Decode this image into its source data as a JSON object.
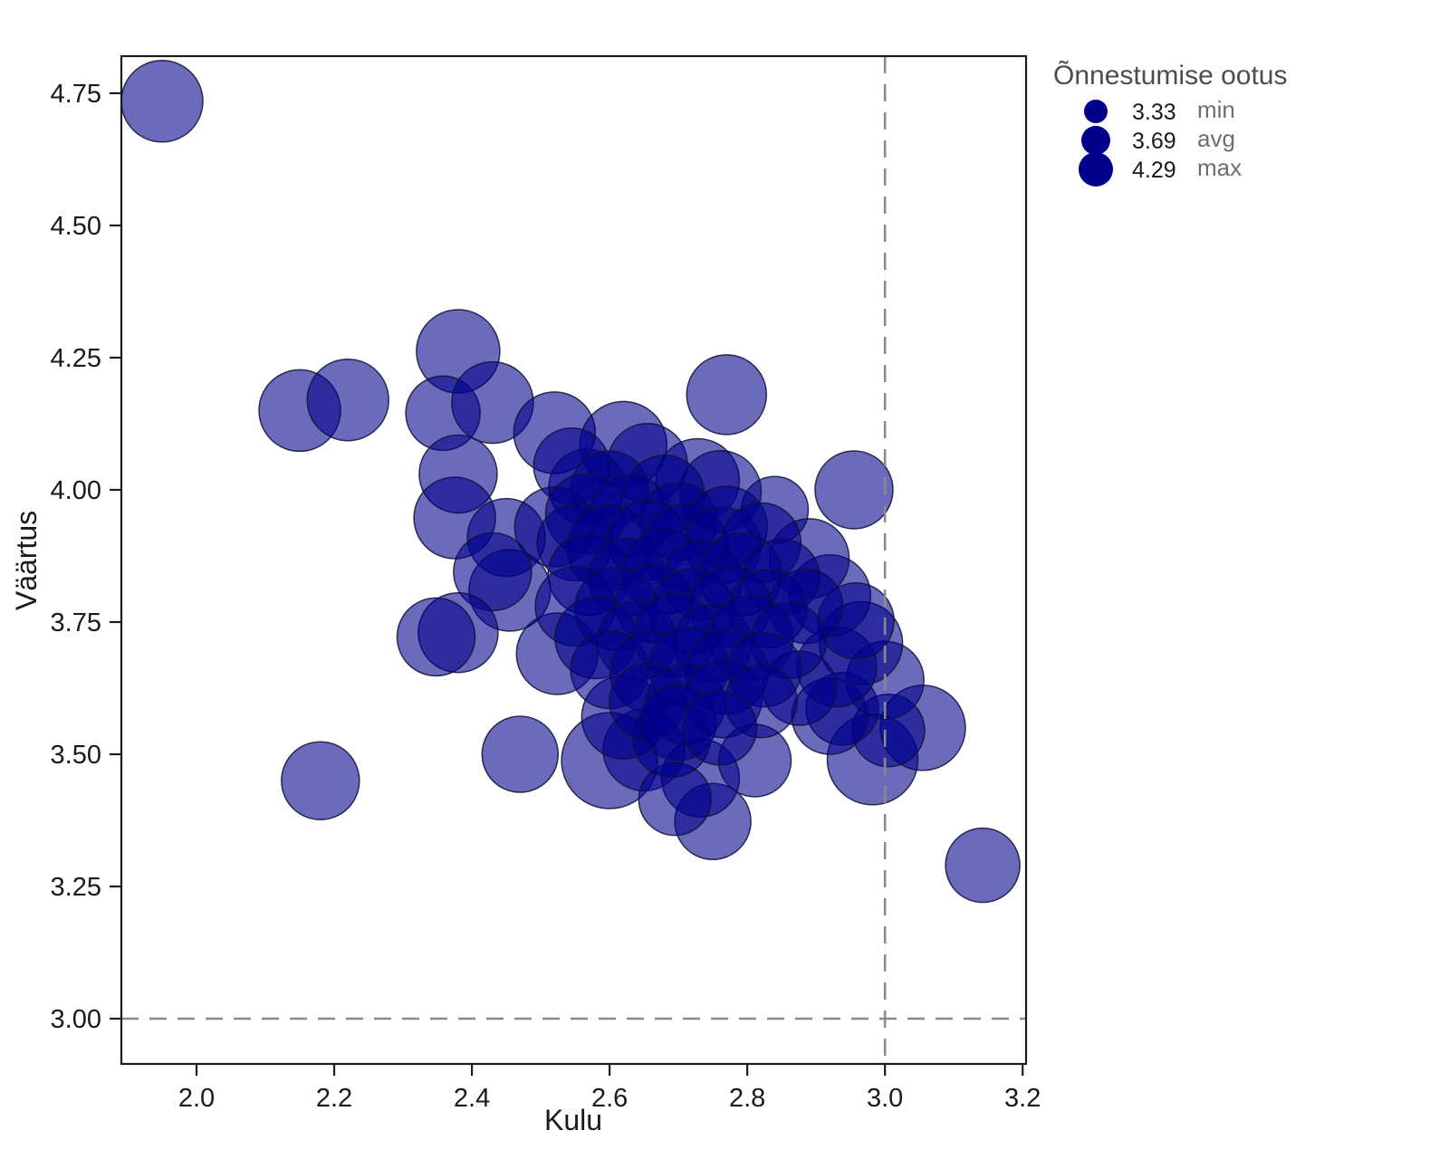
{
  "figure": {
    "background": "#ffffff",
    "spine_color": "#1c1c1c"
  },
  "chart_data": {
    "type": "scatter",
    "title": "",
    "xlabel": "Kulu",
    "ylabel": "Väärtus",
    "xlim": [
      1.8908,
      3.205
    ],
    "ylim": [
      2.9144,
      4.8202
    ],
    "grid": false,
    "x_ticks": [
      {
        "v": 2.0,
        "label": "2.0"
      },
      {
        "v": 2.2,
        "label": "2.2"
      },
      {
        "v": 2.4,
        "label": "2.4"
      },
      {
        "v": 2.6,
        "label": "2.6"
      },
      {
        "v": 2.8,
        "label": "2.8"
      },
      {
        "v": 3.0,
        "label": "3.0"
      },
      {
        "v": 3.2,
        "label": "3.2"
      }
    ],
    "y_ticks": [
      {
        "v": 3.0,
        "label": "3.00"
      },
      {
        "v": 3.25,
        "label": "3.25"
      },
      {
        "v": 3.5,
        "label": "3.50"
      },
      {
        "v": 3.75,
        "label": "3.75"
      },
      {
        "v": 4.0,
        "label": "4.00"
      },
      {
        "v": 4.25,
        "label": "4.25"
      },
      {
        "v": 4.5,
        "label": "4.50"
      },
      {
        "v": 4.75,
        "label": "4.75"
      }
    ],
    "reference_lines": {
      "vline_x": 3.0,
      "hline_y": 3.0,
      "style": "dashed",
      "color": "#8a8a8a"
    },
    "legend": {
      "title": "Õnnestumise ootus",
      "position": "upper-right-outside",
      "marker_color": "#00008B",
      "items": [
        {
          "value": "3.33",
          "label": "min",
          "r": 13
        },
        {
          "value": "3.69",
          "label": "avg",
          "r": 16
        },
        {
          "value": "4.29",
          "label": "max",
          "r": 19
        }
      ]
    },
    "point_color": "#00008B",
    "point_opacity": 0.58,
    "point_edge_color": "#10103a",
    "points_format": "[kulu, väärtus, radius_px]",
    "points": [
      [
        1.95,
        4.735,
        45
      ],
      [
        2.15,
        4.15,
        45
      ],
      [
        2.22,
        4.17,
        45
      ],
      [
        2.38,
        4.262,
        46
      ],
      [
        2.358,
        4.145,
        41
      ],
      [
        2.43,
        4.165,
        45
      ],
      [
        2.38,
        4.03,
        43
      ],
      [
        2.77,
        4.18,
        44
      ],
      [
        2.955,
        4.0,
        43
      ],
      [
        2.84,
        3.962,
        37
      ],
      [
        2.18,
        3.45,
        43
      ],
      [
        2.47,
        3.5,
        42
      ],
      [
        3.142,
        3.29,
        41
      ],
      [
        2.982,
        3.49,
        50
      ],
      [
        3.055,
        3.55,
        47
      ],
      [
        3.005,
        3.545,
        40
      ],
      [
        2.938,
        3.586,
        40
      ],
      [
        2.92,
        3.572,
        42
      ],
      [
        2.75,
        3.373,
        42
      ],
      [
        2.6,
        3.488,
        53
      ],
      [
        2.732,
        3.455,
        43
      ],
      [
        2.811,
        3.488,
        40
      ],
      [
        2.65,
        3.508,
        45
      ],
      [
        2.695,
        3.415,
        40
      ],
      [
        2.52,
        4.108,
        45
      ],
      [
        2.62,
        4.085,
        48
      ],
      [
        2.655,
        4.05,
        44
      ],
      [
        2.728,
        4.018,
        46
      ],
      [
        2.761,
        3.997,
        45
      ],
      [
        2.567,
        4.005,
        42
      ],
      [
        2.545,
        4.045,
        42
      ],
      [
        2.6,
        4.0,
        43
      ],
      [
        2.68,
        3.99,
        44
      ],
      [
        3.0,
        3.64,
        43
      ],
      [
        2.965,
        3.71,
        46
      ],
      [
        2.93,
        3.665,
        44
      ],
      [
        2.876,
        3.625,
        41
      ],
      [
        2.375,
        3.947,
        45
      ],
      [
        2.45,
        3.91,
        43
      ],
      [
        2.455,
        3.81,
        45
      ],
      [
        2.43,
        3.845,
        43
      ],
      [
        2.38,
        3.73,
        44
      ],
      [
        2.348,
        3.722,
        43
      ],
      [
        2.52,
        3.93,
        44
      ],
      [
        2.524,
        3.69,
        45
      ],
      [
        2.62,
        3.57,
        46
      ],
      [
        2.69,
        3.53,
        43
      ],
      [
        2.92,
        3.8,
        45
      ],
      [
        2.958,
        3.752,
        42
      ],
      [
        2.89,
        3.87,
        44
      ],
      [
        2.565,
        3.955,
        44
      ],
      [
        2.63,
        3.95,
        46
      ],
      [
        2.7,
        3.94,
        43
      ],
      [
        2.77,
        3.93,
        45
      ],
      [
        2.55,
        3.9,
        42
      ],
      [
        2.6,
        3.89,
        47
      ],
      [
        2.655,
        3.905,
        44
      ],
      [
        2.71,
        3.89,
        48
      ],
      [
        2.765,
        3.895,
        42
      ],
      [
        2.82,
        3.9,
        44
      ],
      [
        2.57,
        3.84,
        45
      ],
      [
        2.625,
        3.835,
        43
      ],
      [
        2.68,
        3.845,
        47
      ],
      [
        2.735,
        3.83,
        44
      ],
      [
        2.79,
        3.84,
        46
      ],
      [
        2.85,
        3.835,
        42
      ],
      [
        2.55,
        3.78,
        44
      ],
      [
        2.61,
        3.775,
        46
      ],
      [
        2.665,
        3.785,
        43
      ],
      [
        2.72,
        3.77,
        47
      ],
      [
        2.775,
        3.78,
        45
      ],
      [
        2.83,
        3.775,
        43
      ],
      [
        2.885,
        3.78,
        41
      ],
      [
        2.58,
        3.72,
        45
      ],
      [
        2.64,
        3.715,
        44
      ],
      [
        2.695,
        3.725,
        46
      ],
      [
        2.75,
        3.71,
        43
      ],
      [
        2.805,
        3.72,
        47
      ],
      [
        2.86,
        3.715,
        42
      ],
      [
        2.6,
        3.66,
        43
      ],
      [
        2.66,
        3.655,
        45
      ],
      [
        2.715,
        3.665,
        44
      ],
      [
        2.77,
        3.655,
        46
      ],
      [
        2.825,
        3.66,
        41
      ],
      [
        2.655,
        3.6,
        42
      ],
      [
        2.71,
        3.595,
        44
      ],
      [
        2.765,
        3.605,
        43
      ],
      [
        2.82,
        3.6,
        40
      ],
      [
        2.7,
        3.56,
        42
      ],
      [
        2.76,
        3.55,
        41
      ]
    ]
  }
}
